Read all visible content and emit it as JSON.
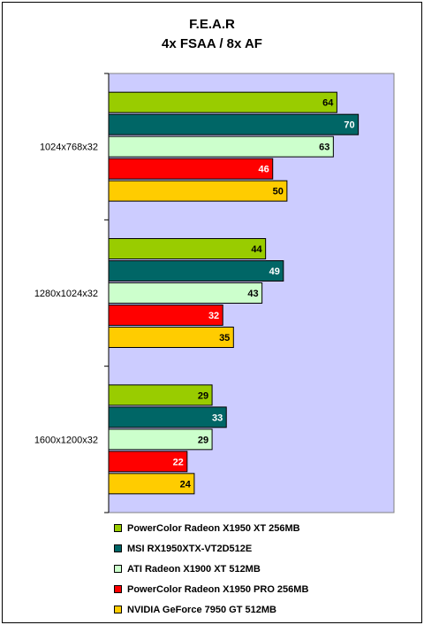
{
  "chart_data": {
    "type": "bar",
    "orientation": "horizontal",
    "title": "F.E.A.R",
    "subtitle": "4x FSAA / 8x AF",
    "categories": [
      "1024x768x32",
      "1280x1024x32",
      "1600x1200x32"
    ],
    "series": [
      {
        "name": "PowerColor Radeon X1950 XT 256MB",
        "color": "#99cc00",
        "label_color": "#000000",
        "values": [
          64,
          44,
          29
        ]
      },
      {
        "name": "MSI RX1950XTX-VT2D512E",
        "color": "#006666",
        "label_color": "#ffffff",
        "values": [
          70,
          49,
          33
        ]
      },
      {
        "name": "ATI Radeon X1900 XT 512MB",
        "color": "#ccffcc",
        "label_color": "#000000",
        "values": [
          63,
          43,
          29
        ]
      },
      {
        "name": "PowerColor Radeon X1950 PRO 256MB",
        "color": "#ff0000",
        "label_color": "#ffffff",
        "values": [
          46,
          32,
          22
        ]
      },
      {
        "name": "NVIDIA GeForce 7950 GT 512MB",
        "color": "#ffcc00",
        "label_color": "#000000",
        "values": [
          50,
          35,
          24
        ]
      }
    ],
    "xlim": [
      0,
      80
    ],
    "plot_background": "#ccccff",
    "grid": false,
    "legend_position": "bottom"
  }
}
